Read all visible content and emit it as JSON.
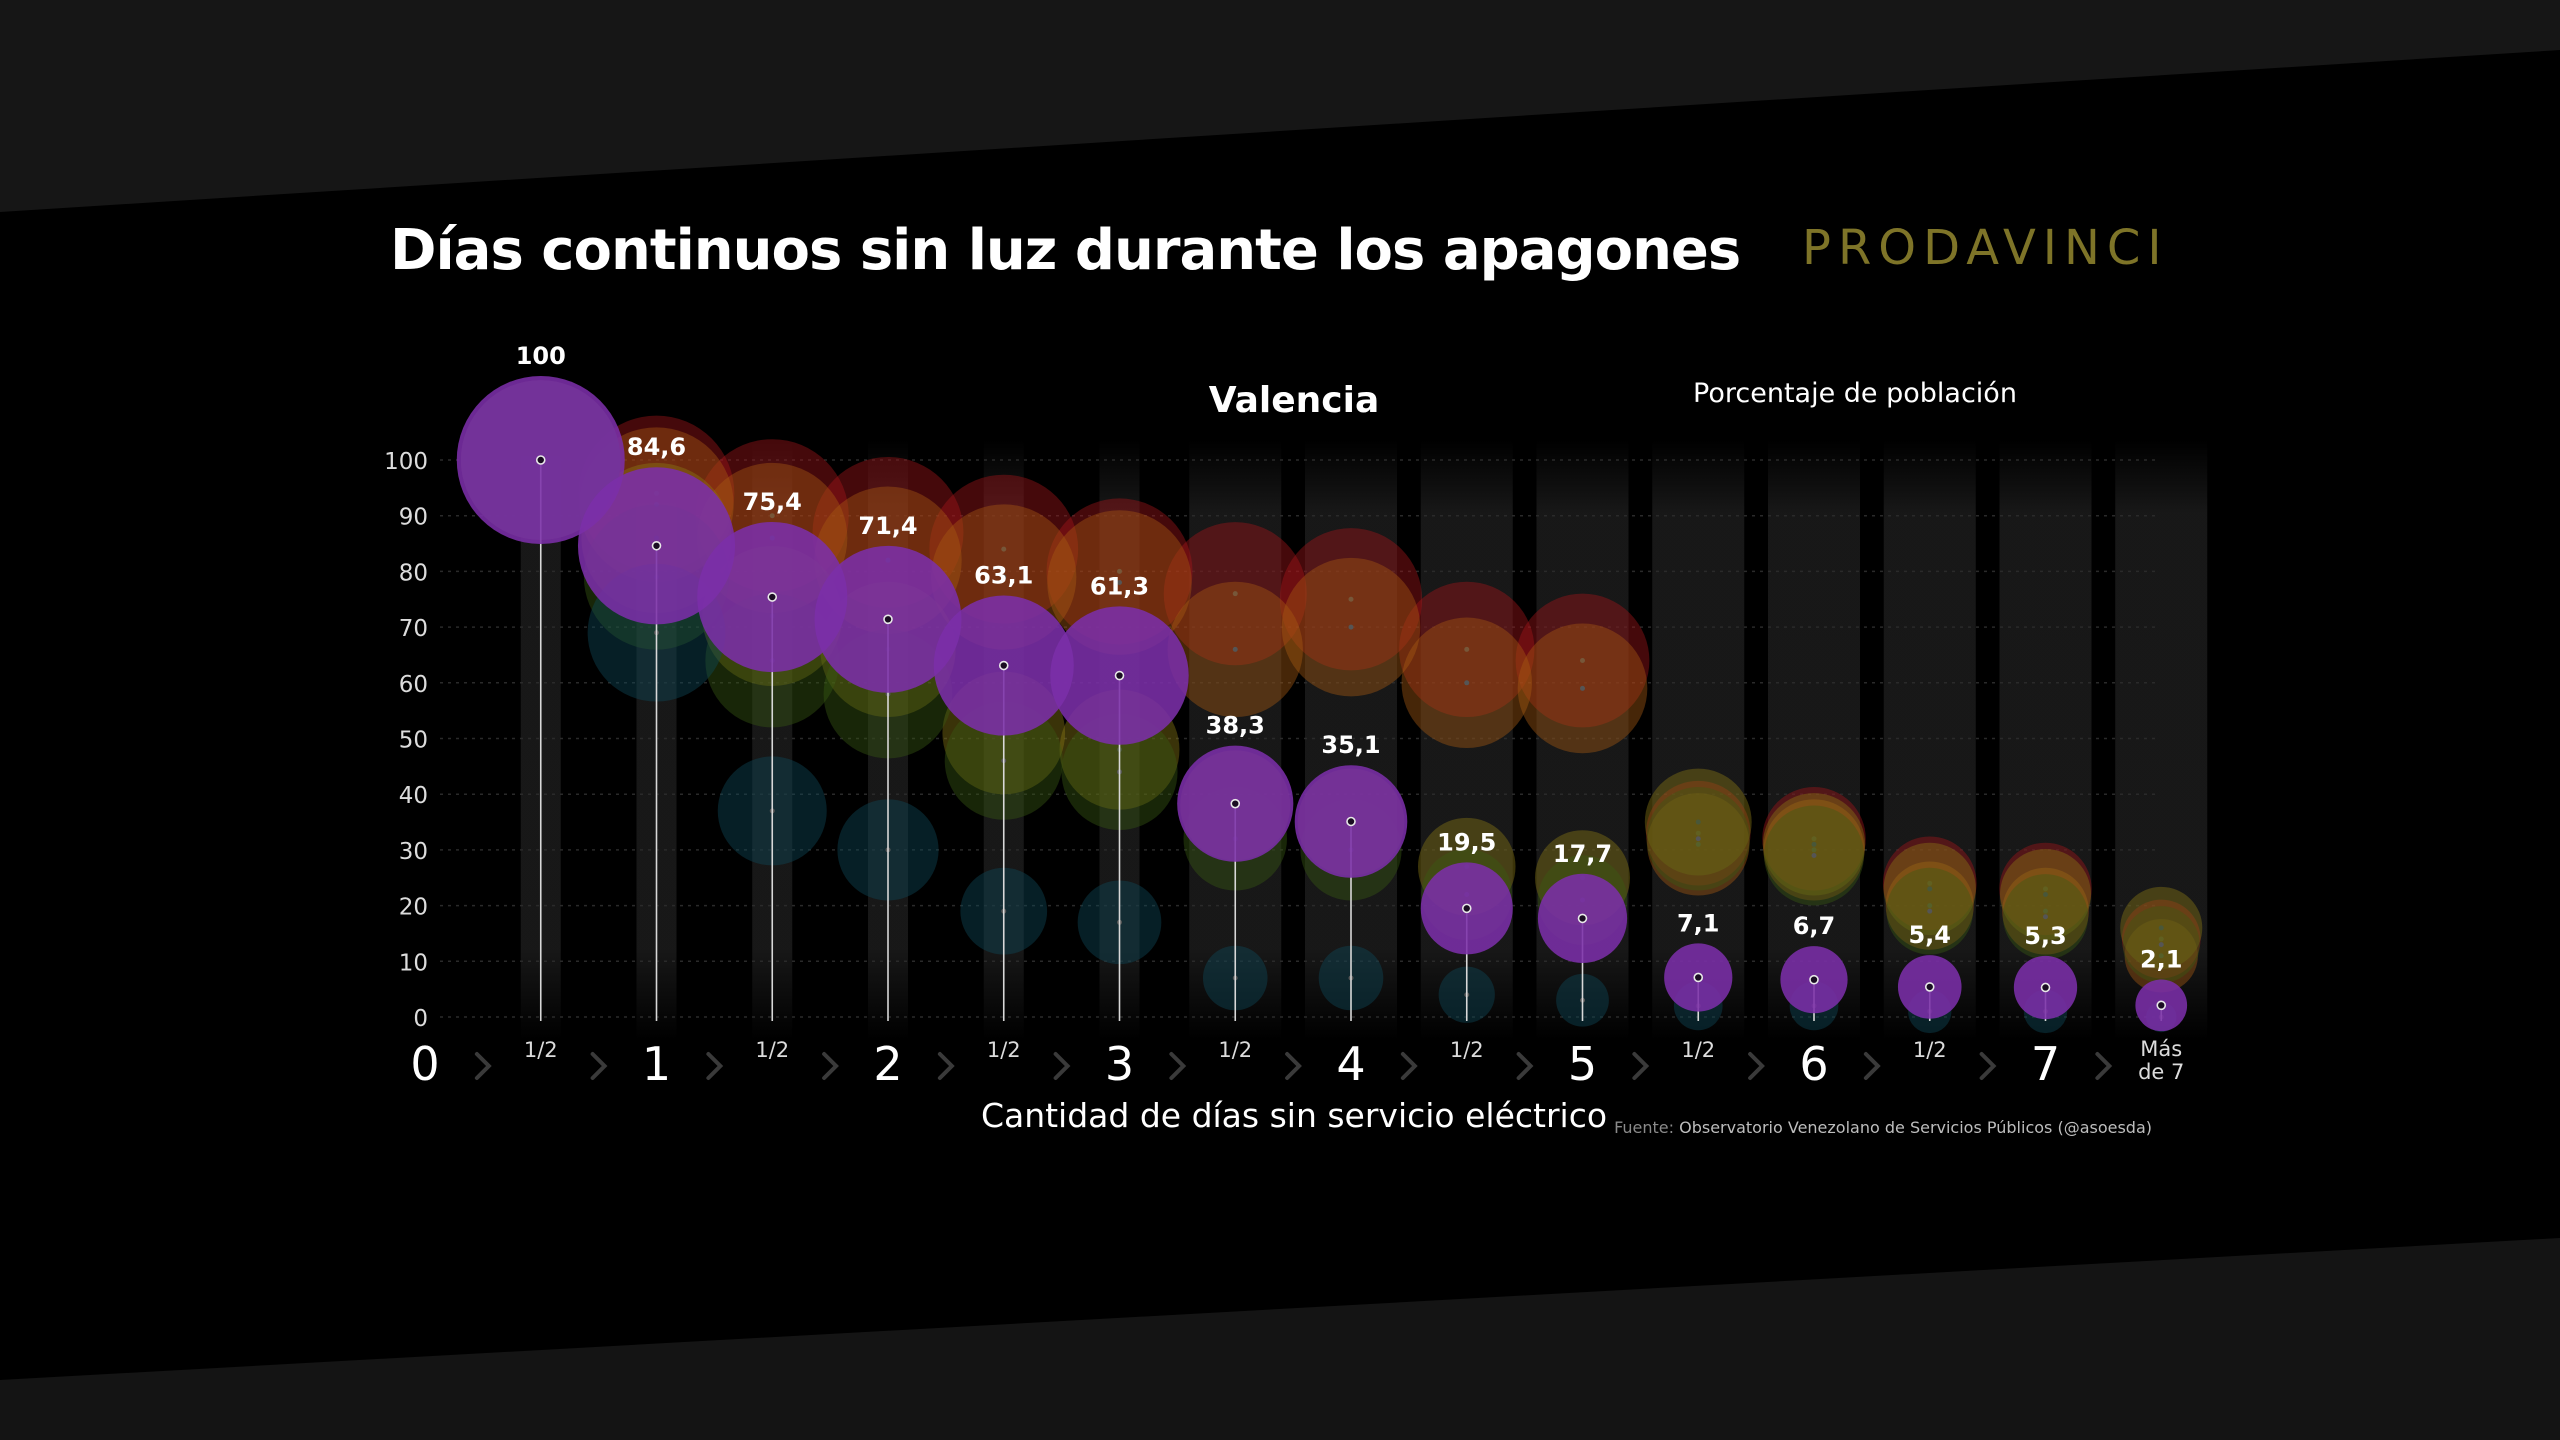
{
  "title": "Días continuos sin luz durante los apagones",
  "brand": "PRODAVINCI",
  "source_label": "Fuente:",
  "source_value": "Observatorio Venezolano de Servicios Públicos (@asoesda)",
  "colors": {
    "primary": "#7b2fa8",
    "ghost_red": "#a4161a",
    "ghost_orange": "#a85b12",
    "ghost_yellow": "#8a7a15",
    "ghost_green": "#3a5a12",
    "ghost_teal": "#0f4b5a",
    "brand": "#7e7428"
  },
  "chart_data": {
    "type": "scatter",
    "subtitle": "Valencia",
    "series_label": "Porcentaje de población",
    "xlabel": "Cantidad de días sin servicio eléctrico",
    "ylabel": "",
    "ylim": [
      0,
      100
    ],
    "grid": true,
    "y_ticks": [
      "100",
      "90",
      "80",
      "70",
      "60",
      "50",
      "40",
      "30",
      "20",
      "10",
      "0"
    ],
    "x_axis_labels": [
      {
        "label": "0",
        "x": 0,
        "major": true
      },
      {
        "label": "1/2",
        "x": 0.5,
        "major": false
      },
      {
        "label": "1",
        "x": 1,
        "major": true
      },
      {
        "label": "1/2",
        "x": 1.5,
        "major": false
      },
      {
        "label": "2",
        "x": 2,
        "major": true
      },
      {
        "label": "1/2",
        "x": 2.5,
        "major": false
      },
      {
        "label": "3",
        "x": 3,
        "major": true
      },
      {
        "label": "1/2",
        "x": 3.5,
        "major": false
      },
      {
        "label": "4",
        "x": 4,
        "major": true
      },
      {
        "label": "1/2",
        "x": 4.5,
        "major": false
      },
      {
        "label": "5",
        "x": 5,
        "major": true
      },
      {
        "label": "1/2",
        "x": 5.5,
        "major": false
      },
      {
        "label": "6",
        "x": 6,
        "major": true
      },
      {
        "label": "1/2",
        "x": 6.5,
        "major": false
      },
      {
        "label": "7",
        "x": 7,
        "major": true
      }
    ],
    "last_label": [
      "Más",
      "de 7"
    ],
    "points": [
      {
        "x": 0.5,
        "value": 100,
        "label": "100"
      },
      {
        "x": 1,
        "value": 84.6,
        "label": "84,6"
      },
      {
        "x": 1.5,
        "value": 75.4,
        "label": "75,4"
      },
      {
        "x": 2,
        "value": 71.4,
        "label": "71,4"
      },
      {
        "x": 2.5,
        "value": 63.1,
        "label": "63,1"
      },
      {
        "x": 3,
        "value": 61.3,
        "label": "61,3"
      },
      {
        "x": 3.5,
        "value": 38.3,
        "label": "38,3"
      },
      {
        "x": 4,
        "value": 35.1,
        "label": "35,1"
      },
      {
        "x": 4.5,
        "value": 19.5,
        "label": "19,5"
      },
      {
        "x": 5,
        "value": 17.7,
        "label": "17,7"
      },
      {
        "x": 5.5,
        "value": 7.1,
        "label": "7,1"
      },
      {
        "x": 6,
        "value": 6.7,
        "label": "6,7"
      },
      {
        "x": 6.5,
        "value": 5.4,
        "label": "5,4"
      },
      {
        "x": 7,
        "value": 5.3,
        "label": "5,3"
      },
      {
        "x": 7.5,
        "value": 2.1,
        "label": "2,1"
      }
    ],
    "background_series": [
      {
        "color": "ghost_red",
        "values": [
          100,
          94,
          90,
          87,
          84,
          80,
          76,
          75,
          66,
          64,
          33,
          32,
          24,
          23,
          14
        ]
      },
      {
        "color": "ghost_orange",
        "values": [
          100,
          92,
          86,
          82,
          79,
          78,
          66,
          70,
          60,
          59,
          31,
          30,
          20,
          19,
          11
        ]
      },
      {
        "color": "ghost_yellow",
        "values": [
          100,
          86,
          72,
          66,
          51,
          48,
          38,
          35,
          27,
          25,
          35,
          31,
          23,
          22,
          16
        ]
      },
      {
        "color": "ghost_green",
        "values": [
          100,
          79,
          64,
          58,
          46,
          44,
          32,
          30,
          22,
          21,
          32,
          29,
          19,
          18,
          13
        ]
      },
      {
        "color": "ghost_teal",
        "values": [
          100,
          69,
          37,
          30,
          19,
          17,
          7,
          7,
          4,
          3,
          2,
          2,
          1,
          1,
          0
        ]
      }
    ]
  }
}
